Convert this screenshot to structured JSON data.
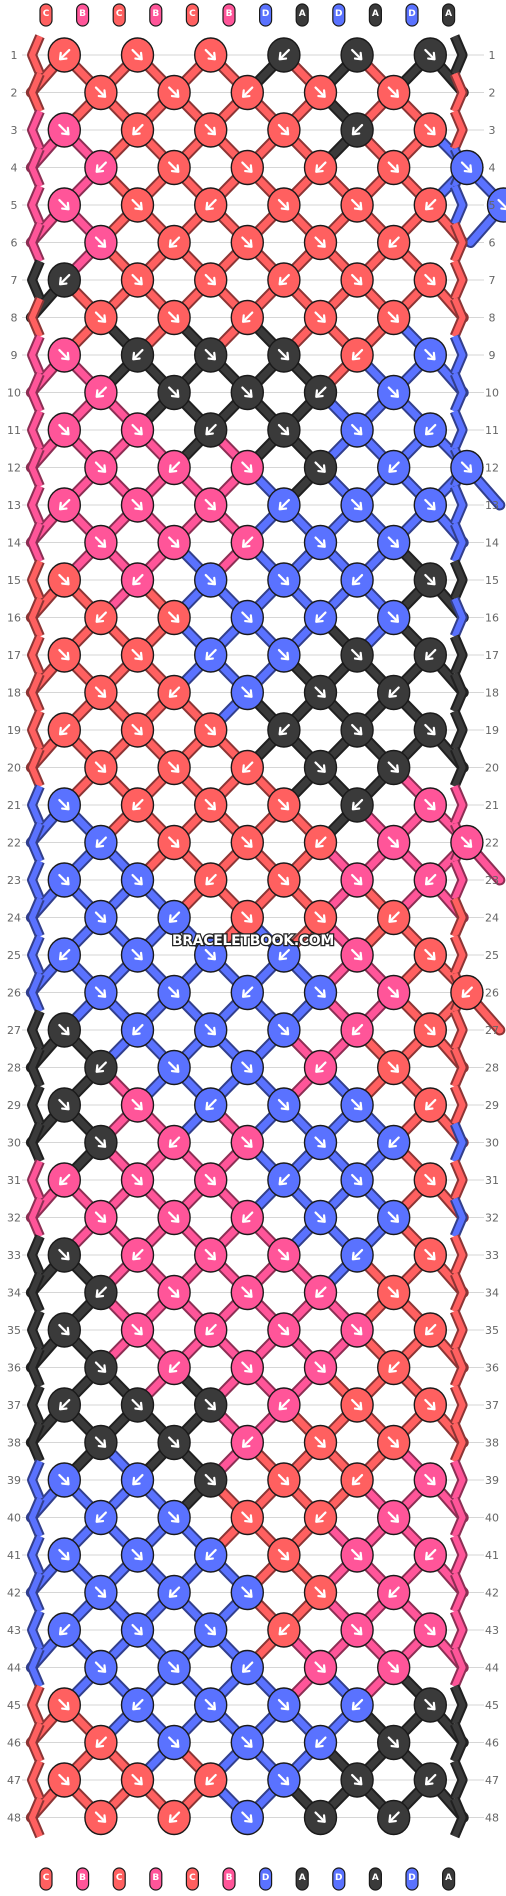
{
  "colors": {
    "C": "#ff6060",
    "B": "#ff5599",
    "D": "#5a72ff",
    "A": "#3a3a3a"
  },
  "top_labels": [
    "C",
    "B",
    "C",
    "B",
    "C",
    "B",
    "D",
    "A",
    "D",
    "A",
    "D",
    "A"
  ],
  "bottom_labels": [
    "C",
    "B",
    "C",
    "B",
    "C",
    "B",
    "D",
    "A",
    "D",
    "A",
    "D",
    "A"
  ],
  "row_count": 48,
  "row_numbers": [
    "1",
    "2",
    "3",
    "4",
    "5",
    "6",
    "7",
    "8",
    "9",
    "10",
    "11",
    "12",
    "13",
    "14",
    "15",
    "16",
    "17",
    "18",
    "19",
    "20",
    "21",
    "22",
    "23",
    "24",
    "25",
    "26",
    "27",
    "28",
    "29",
    "30",
    "31",
    "32",
    "33",
    "34",
    "35",
    "36",
    "37",
    "38",
    "39",
    "40",
    "41",
    "42",
    "43",
    "44",
    "45",
    "46",
    "47",
    "48"
  ],
  "watermark": "BRACELETBOOK.COM",
  "arrow_icon": "diagonal-arrow-icon",
  "knot_rows": [
    "CCCAAA",
    "CCCCC",
    "BCCCAC",
    "BCCCCD",
    "BCCCCCD",
    "BCCCC",
    "ACCCCC",
    "CCCCC",
    "BAAACD",
    "BAAAD",
    "BBAADD",
    "BBBADD",
    "BBBDDD",
    "BBBDD",
    "CBDDDA",
    "CCDDD",
    "CCDDAA",
    "CCDAA",
    "CCCAAA",
    "CCCAA",
    "DCCCAB",
    "DCCCBB",
    "DDCCBB",
    "DDCCC",
    "DDDDBC",
    "DDDDBC",
    "ADDDBC",
    "ADDBC",
    "ABDDDC",
    "ABBDD",
    "BBBDDC",
    "BBBDD",
    "ABBBDC",
    "ABBBC",
    "ABBBBC",
    "ABBBC",
    "AAABCC",
    "AABCC",
    "DDACCB",
    "DDCCB",
    "DDDCBB",
    "DDDCB",
    "DDDCBB",
    "DDDBB",
    "CDDDDA",
    "CDDDA",
    "CCCDAA",
    "CCDAA"
  ]
}
